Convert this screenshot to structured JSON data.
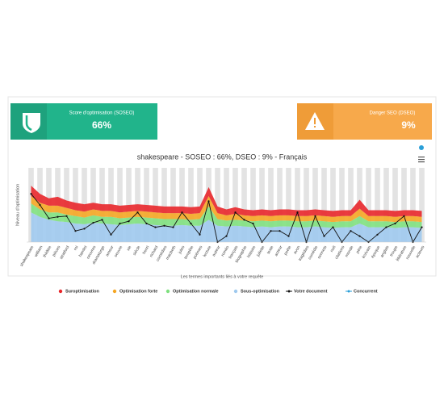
{
  "cards": {
    "soseo": {
      "title": "Score d'optimisation (SOSEO)",
      "value": "66%"
    },
    "dseo": {
      "title": "Danger SEO (DSEO)",
      "value": "9%"
    }
  },
  "chart_data": {
    "type": "stacked-area",
    "title": "shakespeare - SOSEO : 66%, DSEO : 9% - Français",
    "x_label": "Les termes importants liés à votre requête",
    "y_label": "Niveau d'optimisation",
    "categories": [
      "shakespeare",
      "william",
      "théâtre",
      "pièces",
      "stratford",
      "roi",
      "hamlet",
      "oeuvres",
      "dramaturge",
      "amour",
      "oeuvre",
      "vie",
      "siècle",
      "henri",
      "richard",
      "comédies",
      "macbeth",
      "jules",
      "tempête",
      "poèmes",
      "lecture",
      "auteur",
      "roméo",
      "français",
      "biographie",
      "histoire",
      "juliette",
      "texte",
      "acteur",
      "poète",
      "avon",
      "tragédies",
      "comédie",
      "sonnets",
      "nuit",
      "citations",
      "monde",
      "père",
      "écrivain",
      "époque",
      "anglais",
      "troupe",
      "littérature",
      "nouvelle",
      "acteurs"
    ],
    "ylim": [
      0,
      100
    ],
    "series": [
      {
        "name": "Suroptimisation",
        "color": "#e8262a",
        "kind": "area",
        "values": [
          14,
          12,
          10,
          12,
          10,
          10,
          10,
          9,
          9,
          9,
          9,
          9,
          9,
          9,
          9,
          9,
          9,
          9,
          9,
          9,
          12,
          9,
          8,
          9,
          8,
          8,
          8,
          8,
          8,
          8,
          8,
          8,
          8,
          8,
          8,
          8,
          8,
          12,
          8,
          8,
          8,
          8,
          8,
          8,
          8
        ]
      },
      {
        "name": "Optimisation forte",
        "color": "#f5a623",
        "kind": "area",
        "values": [
          10,
          9,
          9,
          9,
          9,
          8,
          8,
          8,
          8,
          8,
          8,
          8,
          8,
          8,
          8,
          8,
          8,
          8,
          8,
          8,
          14,
          8,
          7,
          8,
          7,
          7,
          7,
          7,
          7,
          7,
          7,
          7,
          7,
          7,
          7,
          7,
          7,
          10,
          7,
          7,
          7,
          7,
          7,
          7,
          7
        ]
      },
      {
        "name": "Optimisation normale",
        "color": "#7fe07f",
        "kind": "area",
        "values": [
          12,
          10,
          10,
          12,
          10,
          10,
          9,
          10,
          9,
          10,
          9,
          9,
          9,
          9,
          9,
          9,
          9,
          8,
          8,
          9,
          18,
          9,
          8,
          8,
          8,
          8,
          8,
          8,
          8,
          8,
          8,
          8,
          8,
          8,
          8,
          8,
          8,
          10,
          8,
          8,
          8,
          8,
          8,
          8,
          8
        ]
      },
      {
        "name": "Sous-optimisation",
        "color": "#9fc9ee",
        "kind": "area",
        "values": [
          40,
          34,
          30,
          28,
          27,
          25,
          24,
          26,
          25,
          24,
          23,
          24,
          25,
          24,
          23,
          22,
          22,
          23,
          22,
          22,
          30,
          22,
          21,
          22,
          21,
          20,
          21,
          20,
          21,
          21,
          20,
          20,
          21,
          20,
          19,
          20,
          20,
          25,
          20,
          20,
          20,
          19,
          20,
          20,
          19
        ]
      },
      {
        "name": "Votre document",
        "color": "#111111",
        "kind": "line",
        "values": [
          65,
          50,
          32,
          34,
          35,
          15,
          18,
          26,
          30,
          10,
          25,
          28,
          40,
          25,
          20,
          22,
          20,
          40,
          25,
          10,
          55,
          0,
          8,
          40,
          30,
          25,
          0,
          15,
          15,
          8,
          40,
          0,
          35,
          8,
          20,
          0,
          15,
          8,
          0,
          10,
          20,
          25,
          35,
          0,
          20
        ]
      },
      {
        "name": "Concurrent",
        "color": "#2b9fd8",
        "kind": "line",
        "values": [
          null,
          null,
          null,
          null,
          null,
          null,
          null,
          null,
          null,
          null,
          null,
          null,
          null,
          null,
          null,
          null,
          null,
          null,
          null,
          null,
          null,
          null,
          null,
          null,
          null,
          null,
          null,
          null,
          null,
          null,
          null,
          null,
          null,
          null,
          null,
          null,
          null,
          null,
          null,
          null,
          null,
          null,
          null,
          null,
          null
        ]
      }
    ]
  }
}
